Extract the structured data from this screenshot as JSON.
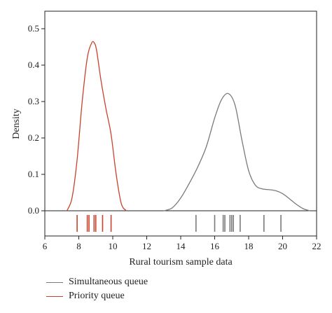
{
  "chart_data": {
    "type": "line",
    "xlabel": "Rural tourism sample data",
    "ylabel": "Density",
    "xlim": [
      6,
      22
    ],
    "ylim": [
      -0.065,
      0.56
    ],
    "x_ticks": [
      6,
      8,
      10,
      12,
      14,
      16,
      18,
      20,
      22
    ],
    "y_ticks": [
      0.0,
      0.1,
      0.2,
      0.3,
      0.4,
      0.5
    ],
    "y_tick_labels": [
      "0.0",
      "0.1",
      "0.2",
      "0.3",
      "0.4",
      "0.5"
    ],
    "legend_position": "bottom",
    "series": [
      {
        "name": "Simultaneous queue",
        "color": "#7a7a7a",
        "x": [
          13.0,
          13.5,
          14.0,
          14.5,
          15.0,
          15.5,
          16.0,
          16.4,
          16.8,
          17.2,
          17.6,
          18.0,
          18.4,
          18.8,
          19.2,
          19.6,
          20.0,
          20.4,
          20.8,
          21.2,
          21.6
        ],
        "y": [
          0.0,
          0.008,
          0.035,
          0.075,
          0.12,
          0.175,
          0.255,
          0.305,
          0.322,
          0.29,
          0.195,
          0.11,
          0.07,
          0.06,
          0.058,
          0.055,
          0.047,
          0.033,
          0.018,
          0.006,
          0.0
        ],
        "rug": [
          14.9,
          16.0,
          16.5,
          16.6,
          16.9,
          17.0,
          17.1,
          17.5,
          18.9,
          19.9
        ]
      },
      {
        "name": "Priority queue",
        "color": "#c8432b",
        "x": [
          7.3,
          7.6,
          7.9,
          8.2,
          8.5,
          8.75,
          8.9,
          9.05,
          9.3,
          9.6,
          9.9,
          10.2,
          10.5,
          10.8
        ],
        "y": [
          0.0,
          0.035,
          0.14,
          0.3,
          0.42,
          0.46,
          0.462,
          0.44,
          0.36,
          0.28,
          0.21,
          0.1,
          0.02,
          0.0
        ],
        "rug": [
          7.9,
          8.5,
          8.6,
          8.9,
          9.0,
          9.4,
          9.9
        ]
      }
    ]
  }
}
